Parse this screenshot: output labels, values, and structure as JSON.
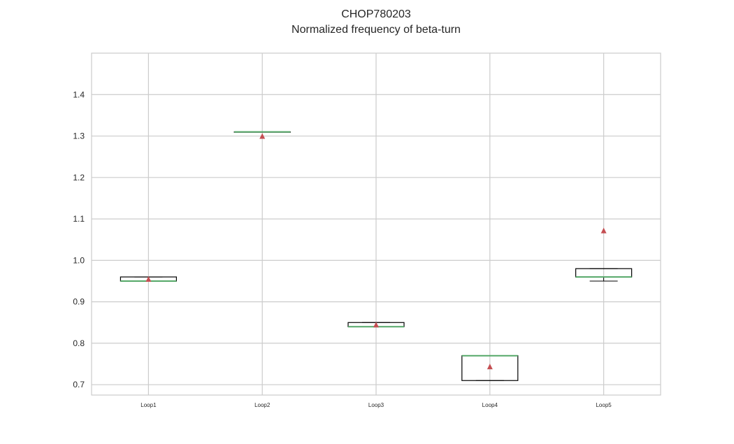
{
  "chart_data": {
    "type": "box",
    "title": "CHOP780203",
    "subtitle": "Normalized frequency of beta-turn",
    "xlabel": "",
    "ylabel": "",
    "ylim": [
      0.675,
      1.5
    ],
    "yticks": [
      0.7,
      0.8,
      0.9,
      1.0,
      1.1,
      1.2,
      1.3,
      1.4
    ],
    "ytick_labels": [
      "0.7",
      "0.8",
      "0.9",
      "1.0",
      "1.1",
      "1.2",
      "1.3",
      "1.4"
    ],
    "grid": true,
    "categories": [
      "Loop1",
      "Loop2",
      "Loop3",
      "Loop4",
      "Loop5"
    ],
    "boxes": [
      {
        "name": "Loop1",
        "whisker_low": 0.95,
        "q1": 0.95,
        "median": 0.95,
        "q3": 0.96,
        "whisker_high": 0.96,
        "mean": 0.955
      },
      {
        "name": "Loop2",
        "whisker_low": 1.31,
        "q1": 1.31,
        "median": 1.31,
        "q3": 1.31,
        "whisker_high": 1.31,
        "mean": 1.3
      },
      {
        "name": "Loop3",
        "whisker_low": 0.84,
        "q1": 0.84,
        "median": 0.84,
        "q3": 0.85,
        "whisker_high": 0.85,
        "mean": 0.845
      },
      {
        "name": "Loop4",
        "whisker_low": 0.71,
        "q1": 0.71,
        "median": 0.77,
        "q3": 0.77,
        "whisker_high": 0.77,
        "mean": 0.744
      },
      {
        "name": "Loop5",
        "whisker_low": 0.95,
        "q1": 0.96,
        "median": 0.96,
        "q3": 0.98,
        "whisker_high": 0.98,
        "mean": 1.072
      }
    ],
    "colors": {
      "box": "#000000",
      "median": "#55a868",
      "mean_marker": "#c44e52",
      "grid": "#cccccc",
      "frame": "#cccccc"
    }
  }
}
